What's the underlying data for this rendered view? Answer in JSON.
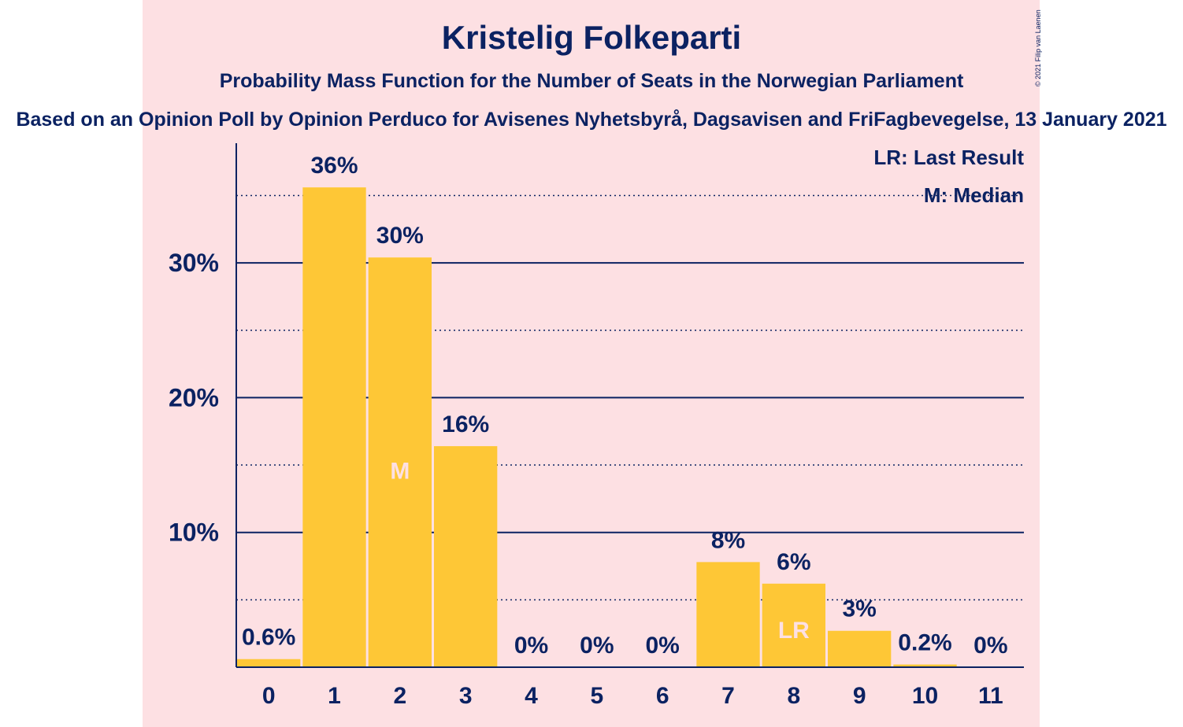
{
  "colors": {
    "panel_background": "#fde0e3",
    "bar": "#fec736",
    "text": "#0b2262",
    "bar_marker_text": "#fde0e3"
  },
  "header": {
    "title": "Kristelig Folkeparti",
    "subtitle": "Probability Mass Function for the Number of Seats in the Norwegian Parliament",
    "source": "Based on an Opinion Poll by Opinion Perduco for Avisenes Nyhetsbyrå, Dagsavisen and FriFagbevegelse, 13 January 2021",
    "copyright": "© 2021 Filip van Laenen"
  },
  "chart_data": {
    "type": "bar",
    "title": "Kristelig Folkeparti",
    "subtitle": "Probability Mass Function for the Number of Seats in the Norwegian Parliament",
    "xlabel": "",
    "ylabel": "",
    "categories": [
      "0",
      "1",
      "2",
      "3",
      "4",
      "5",
      "6",
      "7",
      "8",
      "9",
      "10",
      "11"
    ],
    "values": [
      0.6,
      35.6,
      30.4,
      16.4,
      0,
      0,
      0,
      7.8,
      6.2,
      2.7,
      0.2,
      0
    ],
    "value_labels": [
      "0.6%",
      "36%",
      "30%",
      "16%",
      "0%",
      "0%",
      "0%",
      "8%",
      "6%",
      "3%",
      "0.2%",
      "0%"
    ],
    "ylim": [
      0,
      39
    ],
    "y_ticks": [
      10,
      20,
      30
    ],
    "y_tick_labels": [
      "10%",
      "20%",
      "30%"
    ],
    "minor_gridlines": [
      5,
      15,
      25,
      35
    ],
    "grid": true,
    "markers": [
      {
        "category": "2",
        "label": "M"
      },
      {
        "category": "8",
        "label": "LR"
      }
    ],
    "legend": {
      "placement": "top-right",
      "entries": [
        "LR: Last Result",
        "M: Median"
      ]
    }
  }
}
